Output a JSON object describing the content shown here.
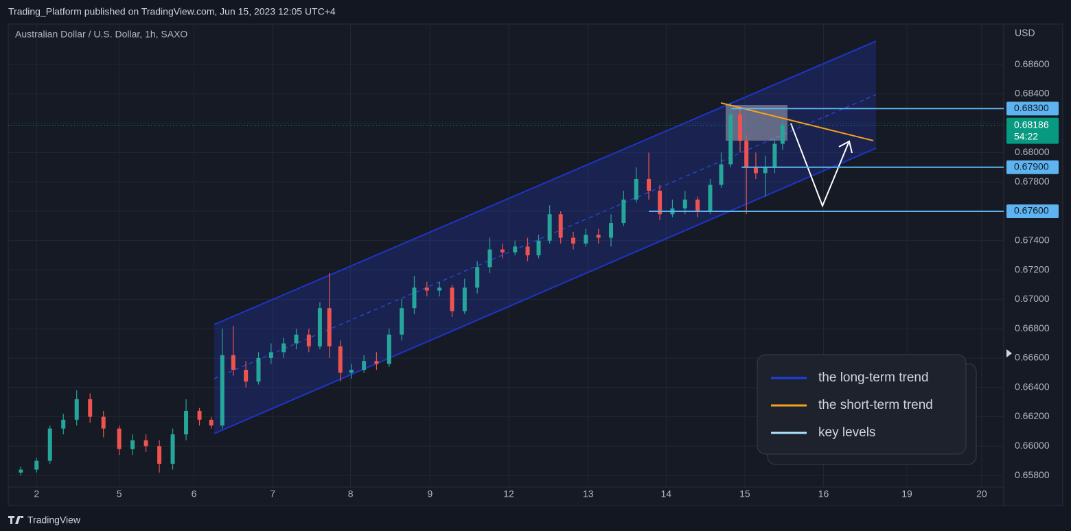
{
  "header": "Trading_Platform published on TradingView.com, Jun 15, 2023 12:05 UTC+4",
  "footer": "TradingView",
  "chart_data": {
    "type": "candlestick",
    "title": "Australian Dollar / U.S. Dollar, 1h, SAXO",
    "y_axis_label": "USD",
    "up_color": "#26a69a",
    "down_color": "#ef5350",
    "x": [
      -0.2,
      0.0,
      0.17,
      0.34,
      0.51,
      0.68,
      0.85,
      1.05,
      1.22,
      1.39,
      1.56,
      1.73,
      1.9,
      2.07,
      2.22,
      2.36,
      2.5,
      2.66,
      2.82,
      2.98,
      3.14,
      3.3,
      3.46,
      3.6,
      3.72,
      3.86,
      4.0,
      4.16,
      4.32,
      4.48,
      4.64,
      4.8,
      4.96,
      5.12,
      5.28,
      5.44,
      5.6,
      5.76,
      5.92,
      6.08,
      6.24,
      6.38,
      6.52,
      6.66,
      6.82,
      6.98,
      7.14,
      7.3,
      7.46,
      7.62,
      7.78,
      7.92,
      8.08,
      8.24,
      8.4,
      8.56,
      8.7,
      8.82,
      8.94,
      9.02,
      9.14,
      9.26,
      9.38,
      9.48
    ],
    "open": [
      0.6582,
      0.6584,
      0.659,
      0.6612,
      0.6618,
      0.6632,
      0.662,
      0.6612,
      0.6598,
      0.6604,
      0.66,
      0.6588,
      0.6608,
      0.6624,
      0.6618,
      0.6614,
      0.6662,
      0.6652,
      0.6644,
      0.666,
      0.6664,
      0.667,
      0.6676,
      0.6668,
      0.6694,
      0.6668,
      0.665,
      0.6652,
      0.6658,
      0.6656,
      0.6676,
      0.6694,
      0.6708,
      0.6706,
      0.6708,
      0.6692,
      0.6708,
      0.6722,
      0.6734,
      0.6732,
      0.6736,
      0.673,
      0.674,
      0.6758,
      0.6742,
      0.6738,
      0.6744,
      0.6742,
      0.6752,
      0.6768,
      0.6782,
      0.6774,
      0.6758,
      0.6762,
      0.6768,
      0.676,
      0.6778,
      0.6792,
      0.6826,
      0.6808,
      0.679,
      0.6786,
      0.679,
      0.6806
    ],
    "high": [
      0.6586,
      0.6592,
      0.6614,
      0.6622,
      0.6638,
      0.6636,
      0.6624,
      0.6614,
      0.6608,
      0.6608,
      0.6604,
      0.6612,
      0.6632,
      0.6626,
      0.662,
      0.668,
      0.6682,
      0.6658,
      0.6664,
      0.667,
      0.6674,
      0.668,
      0.668,
      0.6698,
      0.6718,
      0.6672,
      0.6656,
      0.6662,
      0.6664,
      0.668,
      0.67,
      0.6716,
      0.6712,
      0.6712,
      0.671,
      0.6714,
      0.6726,
      0.6742,
      0.6738,
      0.674,
      0.6742,
      0.6744,
      0.6764,
      0.676,
      0.6746,
      0.6748,
      0.6748,
      0.6758,
      0.6774,
      0.679,
      0.68,
      0.6778,
      0.6768,
      0.6774,
      0.677,
      0.6782,
      0.68,
      0.6834,
      0.6832,
      0.6812,
      0.68,
      0.6798,
      0.681,
      0.6822
    ],
    "low": [
      0.658,
      0.6582,
      0.6588,
      0.6608,
      0.6614,
      0.6616,
      0.6606,
      0.6594,
      0.6594,
      0.6596,
      0.6582,
      0.6584,
      0.6604,
      0.6614,
      0.6612,
      0.6612,
      0.6648,
      0.664,
      0.6642,
      0.6656,
      0.666,
      0.6666,
      0.6664,
      0.6666,
      0.666,
      0.6644,
      0.6646,
      0.665,
      0.6652,
      0.6654,
      0.6672,
      0.669,
      0.6702,
      0.6702,
      0.6688,
      0.669,
      0.6704,
      0.6718,
      0.6728,
      0.673,
      0.6726,
      0.6728,
      0.6738,
      0.6738,
      0.6734,
      0.6736,
      0.6738,
      0.6736,
      0.675,
      0.6766,
      0.6768,
      0.6754,
      0.6756,
      0.6758,
      0.6756,
      0.6758,
      0.6776,
      0.679,
      0.68,
      0.6758,
      0.6782,
      0.677,
      0.6786,
      0.6802
    ],
    "close": [
      0.6584,
      0.659,
      0.6612,
      0.6618,
      0.6632,
      0.662,
      0.6612,
      0.6598,
      0.6604,
      0.66,
      0.6588,
      0.6608,
      0.6624,
      0.6618,
      0.6614,
      0.6662,
      0.6652,
      0.6644,
      0.666,
      0.6664,
      0.667,
      0.6676,
      0.6668,
      0.6694,
      0.6668,
      0.665,
      0.6652,
      0.6658,
      0.6656,
      0.6676,
      0.6694,
      0.6708,
      0.6706,
      0.6708,
      0.6692,
      0.6708,
      0.6722,
      0.6734,
      0.6732,
      0.6736,
      0.673,
      0.674,
      0.6758,
      0.6742,
      0.6738,
      0.6744,
      0.6742,
      0.6752,
      0.6768,
      0.6782,
      0.6774,
      0.6758,
      0.6762,
      0.6768,
      0.676,
      0.6778,
      0.6792,
      0.6826,
      0.6808,
      0.679,
      0.6786,
      0.679,
      0.6806,
      0.6819
    ],
    "xlim": [
      -0.36,
      12.29
    ],
    "xticks": [
      {
        "value": 0,
        "label": "2"
      },
      {
        "value": 1.05,
        "label": "5"
      },
      {
        "value": 2.0,
        "label": "6"
      },
      {
        "value": 3.0,
        "label": "7"
      },
      {
        "value": 3.99,
        "label": "8"
      },
      {
        "value": 5.0,
        "label": "9"
      },
      {
        "value": 6.0,
        "label": "12"
      },
      {
        "value": 7.01,
        "label": "13"
      },
      {
        "value": 8.0,
        "label": "14"
      },
      {
        "value": 9.0,
        "label": "15"
      },
      {
        "value": 10.0,
        "label": "16"
      },
      {
        "value": 11.06,
        "label": "19"
      },
      {
        "value": 12.01,
        "label": "20"
      }
    ],
    "ylim": [
      0.65721,
      0.68876
    ],
    "yticks": [
      {
        "value": 0.658,
        "label": "0.65800"
      },
      {
        "value": 0.66,
        "label": "0.66000"
      },
      {
        "value": 0.662,
        "label": "0.66200"
      },
      {
        "value": 0.664,
        "label": "0.66400"
      },
      {
        "value": 0.666,
        "label": "0.66600"
      },
      {
        "value": 0.668,
        "label": "0.66800"
      },
      {
        "value": 0.67,
        "label": "0.67000"
      },
      {
        "value": 0.672,
        "label": "0.67200"
      },
      {
        "value": 0.674,
        "label": "0.67400"
      },
      {
        "value": 0.676,
        "label": "0.67600"
      },
      {
        "value": 0.678,
        "label": "0.67800"
      },
      {
        "value": 0.68,
        "label": "0.68000"
      },
      {
        "value": 0.682,
        "label": "0.68200"
      },
      {
        "value": 0.684,
        "label": "0.68400"
      },
      {
        "value": 0.686,
        "label": "0.68600"
      }
    ],
    "grid": true,
    "level_color": "#5db4f0",
    "levels": [
      {
        "value": 0.683,
        "label": "0.68300",
        "from": 8.83
      },
      {
        "value": 0.679,
        "label": "0.67900",
        "from": 8.96
      },
      {
        "value": 0.676,
        "label": "0.67600",
        "from": 7.78
      }
    ],
    "last_price": {
      "value": 0.68186,
      "label": "0.68186",
      "countdown": "54:22",
      "color": "#089981"
    },
    "legend": [
      {
        "name": "the long-term trend",
        "color": "#1e3ee8"
      },
      {
        "name": "the short-term trend",
        "color": "#f7a21b"
      },
      {
        "name": "key levels",
        "color": "#a8e6ff"
      }
    ]
  }
}
